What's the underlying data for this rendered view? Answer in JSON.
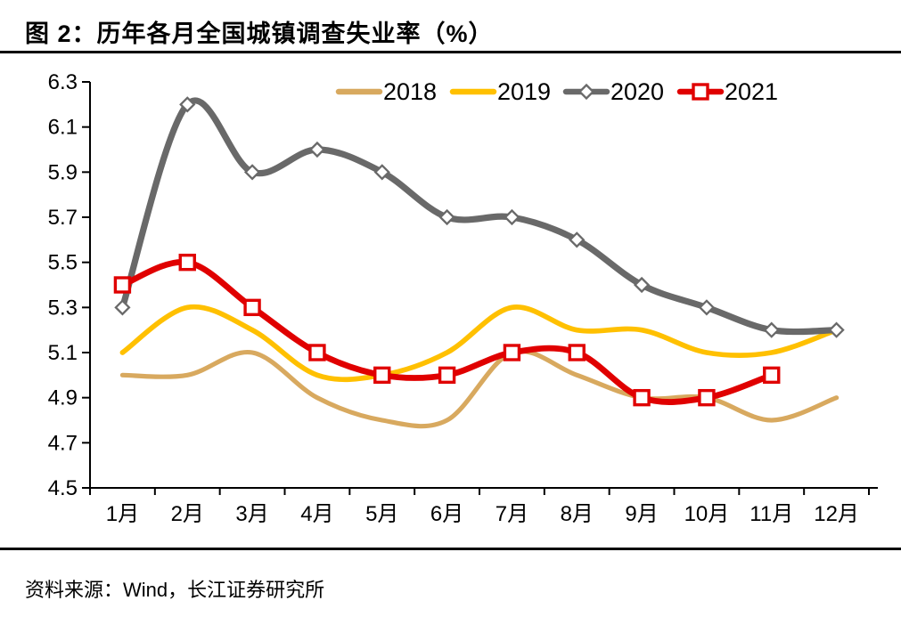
{
  "title": "图 2：历年各月全国城镇调查失业率（%）",
  "source": "资料来源：Wind，长江证券研究所",
  "chart_data": {
    "type": "line",
    "title": "图 2：历年各月全国城镇调查失业率（%）",
    "xlabel": "",
    "ylabel": "",
    "categories": [
      "1月",
      "2月",
      "3月",
      "4月",
      "5月",
      "6月",
      "7月",
      "8月",
      "9月",
      "10月",
      "11月",
      "12月"
    ],
    "ylim": [
      4.5,
      6.3
    ],
    "ytick_step": 0.2,
    "yticks": [
      "6.3",
      "6.1",
      "5.9",
      "5.7",
      "5.5",
      "5.3",
      "5.1",
      "4.9",
      "4.7",
      "4.5"
    ],
    "grid": false,
    "legend_position": "top",
    "background": "#FFFFFF",
    "axis_color": "#000000",
    "marker_fill": "#FFFFFF",
    "series": [
      {
        "name": "2018",
        "color": "#D8A95F",
        "marker": "none",
        "values": [
          5.0,
          5.0,
          5.1,
          4.9,
          4.8,
          4.8,
          5.1,
          5.0,
          4.9,
          4.9,
          4.8,
          4.9
        ]
      },
      {
        "name": "2019",
        "color": "#FFC000",
        "marker": "none",
        "values": [
          5.1,
          5.3,
          5.2,
          5.0,
          5.0,
          5.1,
          5.3,
          5.2,
          5.2,
          5.1,
          5.1,
          5.2
        ]
      },
      {
        "name": "2020",
        "color": "#696969",
        "marker": "diamond",
        "values": [
          5.3,
          6.2,
          5.9,
          6.0,
          5.9,
          5.7,
          5.7,
          5.6,
          5.4,
          5.3,
          5.2,
          5.2
        ]
      },
      {
        "name": "2021",
        "color": "#E00000",
        "marker": "square",
        "values": [
          5.4,
          5.5,
          5.3,
          5.1,
          5.0,
          5.0,
          5.1,
          5.1,
          4.9,
          4.9,
          5.0,
          null
        ]
      }
    ]
  }
}
